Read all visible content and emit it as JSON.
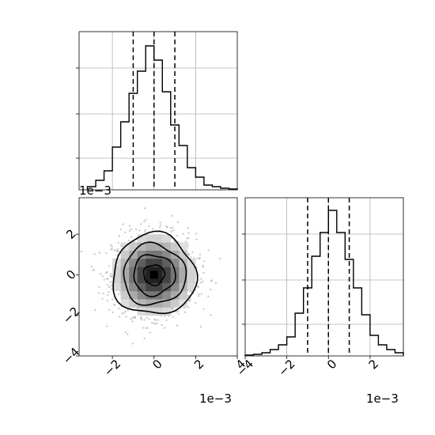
{
  "chart_data": [
    {
      "panel": "marginal-top",
      "type": "bar",
      "style": "step-histogram",
      "x_bin_edges": [
        -0.0032,
        -0.0028,
        -0.0024,
        -0.002,
        -0.0016,
        -0.0012,
        -0.0008,
        -0.0004,
        0.0,
        0.0004,
        0.0008,
        0.0012,
        0.0016,
        0.002,
        0.0024,
        0.0028,
        0.0032,
        0.0036,
        0.004
      ],
      "values": [
        0.02,
        0.06,
        0.12,
        0.27,
        0.43,
        0.61,
        0.75,
        0.91,
        0.82,
        0.62,
        0.41,
        0.28,
        0.14,
        0.08,
        0.03,
        0.02,
        0.01,
        0.005
      ],
      "quantiles": [
        -0.001,
        0.0,
        0.001
      ],
      "xlim": [
        -0.0036,
        0.004
      ],
      "grid": true,
      "y_ticks": [
        0.2,
        0.48,
        0.77
      ]
    },
    {
      "panel": "joint-2d",
      "type": "heatmap",
      "style": "2d-histogram-with-contours",
      "xlim": [
        -0.0036,
        0.004
      ],
      "ylim": [
        -0.004,
        0.0038
      ],
      "x_ticks": [
        "−2",
        "0",
        "2",
        "4"
      ],
      "y_ticks": [
        "−4",
        "−2",
        "0",
        "2"
      ],
      "x_tick_values": [
        -0.002,
        0.0,
        0.002,
        0.004
      ],
      "y_tick_values": [
        -0.004,
        -0.002,
        0.0,
        0.002
      ],
      "x_offset_label": "1e−3",
      "y_offset_label": "1e−3",
      "center": [
        0.0,
        0.0
      ],
      "sigma": [
        0.001,
        0.001
      ],
      "contour_levels_sigma": [
        0.5,
        1.0,
        1.5,
        2.0
      ],
      "scatter_color": "#a0a0a0"
    },
    {
      "panel": "marginal-right",
      "type": "bar",
      "style": "step-histogram",
      "x_bin_edges": [
        -0.004,
        -0.0036,
        -0.0032,
        -0.0028,
        -0.0024,
        -0.002,
        -0.0016,
        -0.0012,
        -0.0008,
        -0.0004,
        0.0,
        0.0004,
        0.0008,
        0.0012,
        0.0016,
        0.002,
        0.0024,
        0.0028,
        0.0032,
        0.0036
      ],
      "values": [
        0.005,
        0.01,
        0.02,
        0.04,
        0.07,
        0.12,
        0.27,
        0.43,
        0.63,
        0.78,
        0.92,
        0.78,
        0.61,
        0.43,
        0.26,
        0.13,
        0.07,
        0.04,
        0.02
      ],
      "quantiles": [
        -0.001,
        0.0,
        0.001
      ],
      "xlim": [
        -0.004,
        0.0036
      ],
      "x_ticks": [
        "−4",
        "−2",
        "0",
        "2"
      ],
      "x_tick_values": [
        -0.004,
        -0.002,
        0.0,
        0.002
      ],
      "x_offset_label": "1e−3",
      "grid": true,
      "y_ticks": [
        0.2,
        0.48,
        0.77
      ]
    }
  ]
}
